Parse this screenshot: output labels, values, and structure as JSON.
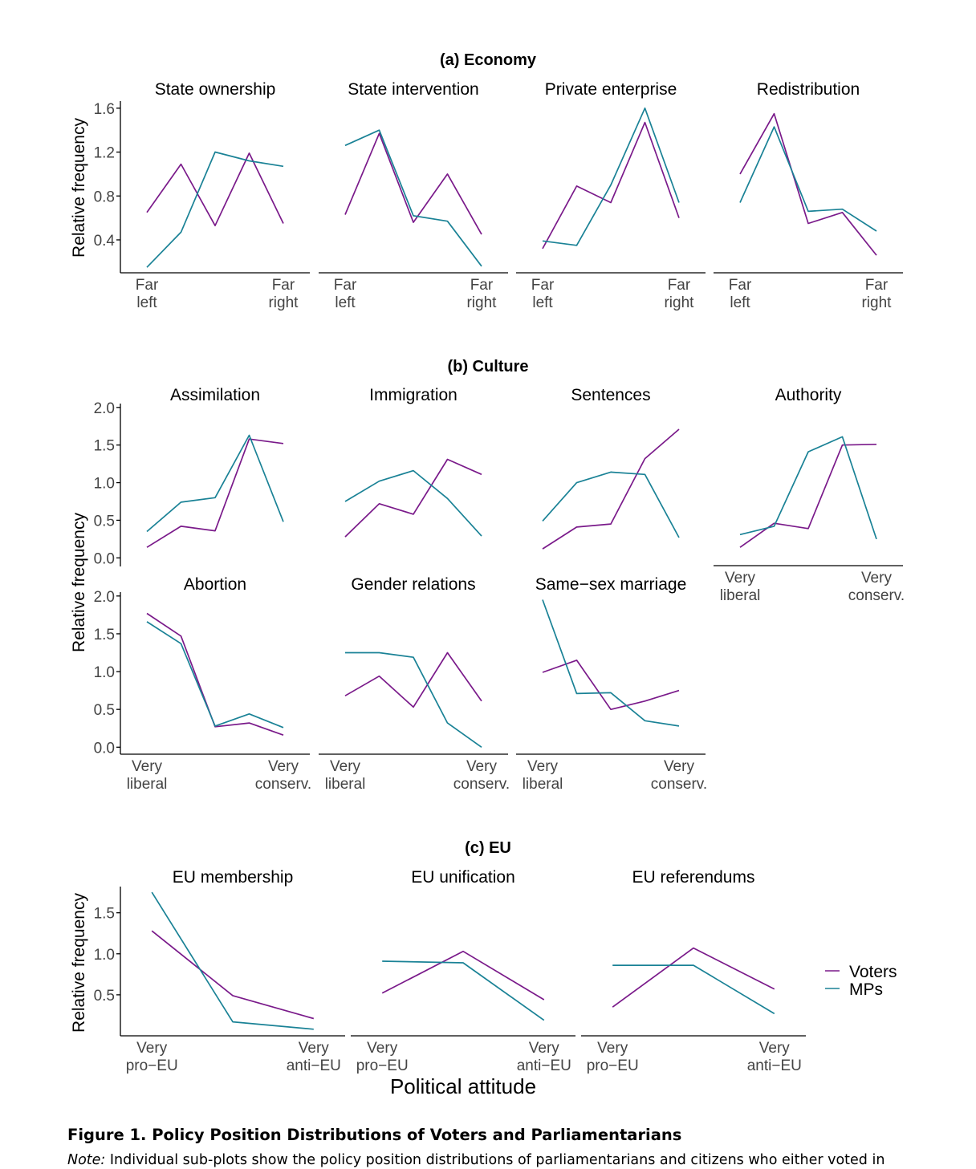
{
  "colors": {
    "voters": "#7a1a8a",
    "mps": "#1a8296"
  },
  "sections": {
    "economy": "(a) Economy",
    "culture": "(b) Culture",
    "eu": "(c) EU"
  },
  "y_axis_title": "Relative frequency",
  "x_axis_title": "Political attitude",
  "legend": {
    "voters": "Voters",
    "mps": "MPs"
  },
  "caption": {
    "title": "Figure 1.  Policy Position Distributions of Voters and Parliamentarians",
    "note_label": "Note:",
    "note_text": " Individual sub-plots show the policy position distributions of parliamentarians and citizens who either voted in"
  },
  "chart_data": [
    {
      "type": "line",
      "section": "economy",
      "title": "State ownership",
      "x": [
        1,
        2,
        3,
        4,
        5
      ],
      "x_labels": [
        "Far\nleft",
        "Far\nright"
      ],
      "ylim": [
        0.1,
        1.65
      ],
      "y_ticks": [
        0.4,
        0.8,
        1.2,
        1.6
      ],
      "series": [
        {
          "name": "Voters",
          "values": [
            0.65,
            1.09,
            0.53,
            1.19,
            0.55
          ]
        },
        {
          "name": "MPs",
          "values": [
            0.15,
            0.47,
            1.2,
            1.12,
            1.07
          ]
        }
      ]
    },
    {
      "type": "line",
      "section": "economy",
      "title": "State intervention",
      "x": [
        1,
        2,
        3,
        4,
        5
      ],
      "x_labels": [
        "Far\nleft",
        "Far\nright"
      ],
      "ylim": [
        0.1,
        1.65
      ],
      "series": [
        {
          "name": "Voters",
          "values": [
            0.63,
            1.37,
            0.56,
            1.0,
            0.45
          ]
        },
        {
          "name": "MPs",
          "values": [
            1.26,
            1.4,
            0.62,
            0.57,
            0.16
          ]
        }
      ]
    },
    {
      "type": "line",
      "section": "economy",
      "title": "Private enterprise",
      "x": [
        1,
        2,
        3,
        4,
        5
      ],
      "x_labels": [
        "Far\nleft",
        "Far\nright"
      ],
      "ylim": [
        0.1,
        1.65
      ],
      "series": [
        {
          "name": "Voters",
          "values": [
            0.32,
            0.89,
            0.74,
            1.47,
            0.6
          ]
        },
        {
          "name": "MPs",
          "values": [
            0.39,
            0.35,
            0.9,
            1.6,
            0.74
          ]
        }
      ]
    },
    {
      "type": "line",
      "section": "economy",
      "title": "Redistribution",
      "x": [
        1,
        2,
        3,
        4,
        5
      ],
      "x_labels": [
        "Far\nleft",
        "Far\nright"
      ],
      "ylim": [
        0.1,
        1.65
      ],
      "series": [
        {
          "name": "Voters",
          "values": [
            1.0,
            1.55,
            0.55,
            0.65,
            0.26
          ]
        },
        {
          "name": "MPs",
          "values": [
            0.74,
            1.43,
            0.66,
            0.68,
            0.48
          ]
        }
      ]
    },
    {
      "type": "line",
      "section": "culture",
      "title": "Assimilation",
      "x": [
        1,
        2,
        3,
        4,
        5
      ],
      "x_labels": [
        "Very\nliberal",
        "Very\nconserv."
      ],
      "ylim": [
        -0.05,
        2.03
      ],
      "y_ticks": [
        0.0,
        0.5,
        1.0,
        1.5,
        2.0
      ],
      "series": [
        {
          "name": "Voters",
          "values": [
            0.14,
            0.42,
            0.36,
            1.58,
            1.52
          ]
        },
        {
          "name": "MPs",
          "values": [
            0.35,
            0.74,
            0.8,
            1.63,
            0.48
          ]
        }
      ]
    },
    {
      "type": "line",
      "section": "culture",
      "title": "Immigration",
      "x": [
        1,
        2,
        3,
        4,
        5
      ],
      "x_labels": [
        "Very\nliberal",
        "Very\nconserv."
      ],
      "ylim": [
        -0.05,
        2.03
      ],
      "series": [
        {
          "name": "Voters",
          "values": [
            0.28,
            0.72,
            0.58,
            1.31,
            1.11
          ]
        },
        {
          "name": "MPs",
          "values": [
            0.75,
            1.02,
            1.16,
            0.79,
            0.29
          ]
        }
      ]
    },
    {
      "type": "line",
      "section": "culture",
      "title": "Sentences",
      "x": [
        1,
        2,
        3,
        4,
        5
      ],
      "x_labels": [
        "Very\nliberal",
        "Very\nconserv."
      ],
      "ylim": [
        -0.05,
        2.03
      ],
      "series": [
        {
          "name": "Voters",
          "values": [
            0.12,
            0.41,
            0.45,
            1.32,
            1.71
          ]
        },
        {
          "name": "MPs",
          "values": [
            0.49,
            1.0,
            1.14,
            1.11,
            0.27
          ]
        }
      ]
    },
    {
      "type": "line",
      "section": "culture",
      "title": "Authority",
      "x": [
        1,
        2,
        3,
        4,
        5
      ],
      "x_labels": [
        "Very\nliberal",
        "Very\nconserv."
      ],
      "ylim": [
        -0.05,
        2.03
      ],
      "series": [
        {
          "name": "Voters",
          "values": [
            0.14,
            0.46,
            0.39,
            1.5,
            1.51
          ]
        },
        {
          "name": "MPs",
          "values": [
            0.31,
            0.42,
            1.41,
            1.61,
            0.25
          ]
        }
      ]
    },
    {
      "type": "line",
      "section": "culture",
      "title": "Abortion",
      "x": [
        1,
        2,
        3,
        4,
        5
      ],
      "x_labels": [
        "Very\nliberal",
        "Very\nconserv."
      ],
      "ylim": [
        -0.05,
        2.03
      ],
      "y_ticks": [
        0.0,
        0.5,
        1.0,
        1.5,
        2.0
      ],
      "series": [
        {
          "name": "Voters",
          "values": [
            1.77,
            1.47,
            0.27,
            0.32,
            0.16
          ]
        },
        {
          "name": "MPs",
          "values": [
            1.66,
            1.37,
            0.28,
            0.44,
            0.26
          ]
        }
      ]
    },
    {
      "type": "line",
      "section": "culture",
      "title": "Gender relations",
      "x": [
        1,
        2,
        3,
        4,
        5
      ],
      "x_labels": [
        "Very\nliberal",
        "Very\nconserv."
      ],
      "ylim": [
        -0.05,
        2.03
      ],
      "series": [
        {
          "name": "Voters",
          "values": [
            0.68,
            0.94,
            0.53,
            1.25,
            0.61
          ]
        },
        {
          "name": "MPs",
          "values": [
            1.25,
            1.25,
            1.19,
            0.32,
            0.0
          ]
        }
      ]
    },
    {
      "type": "line",
      "section": "culture",
      "title": "Same−sex marriage",
      "x": [
        1,
        2,
        3,
        4,
        5
      ],
      "x_labels": [
        "Very\nliberal",
        "Very\nconserv."
      ],
      "ylim": [
        -0.05,
        2.03
      ],
      "series": [
        {
          "name": "Voters",
          "values": [
            0.99,
            1.15,
            0.5,
            0.61,
            0.75
          ]
        },
        {
          "name": "MPs",
          "values": [
            1.95,
            0.71,
            0.72,
            0.35,
            0.28
          ]
        }
      ]
    },
    {
      "type": "line",
      "section": "eu",
      "title": "EU membership",
      "x": [
        1,
        2,
        3
      ],
      "x_labels": [
        "Very\npro−EU",
        "Very\nanti−EU"
      ],
      "ylim": [
        0.0,
        1.8
      ],
      "y_ticks": [
        0.5,
        1.0,
        1.5
      ],
      "series": [
        {
          "name": "Voters",
          "values": [
            1.28,
            0.49,
            0.21
          ]
        },
        {
          "name": "MPs",
          "values": [
            1.75,
            0.17,
            0.08
          ]
        }
      ]
    },
    {
      "type": "line",
      "section": "eu",
      "title": "EU unification",
      "x": [
        1,
        2,
        3
      ],
      "x_labels": [
        "Very\npro−EU",
        "Very\nanti−EU"
      ],
      "ylim": [
        0.0,
        1.8
      ],
      "series": [
        {
          "name": "Voters",
          "values": [
            0.52,
            1.03,
            0.44
          ]
        },
        {
          "name": "MPs",
          "values": [
            0.91,
            0.89,
            0.19
          ]
        }
      ]
    },
    {
      "type": "line",
      "section": "eu",
      "title": "EU referendums",
      "x": [
        1,
        2,
        3
      ],
      "x_labels": [
        "Very\npro−EU",
        "Very\nanti−EU"
      ],
      "ylim": [
        0.0,
        1.8
      ],
      "series": [
        {
          "name": "Voters",
          "values": [
            0.35,
            1.07,
            0.57
          ]
        },
        {
          "name": "MPs",
          "values": [
            0.86,
            0.86,
            0.27
          ]
        }
      ]
    }
  ]
}
